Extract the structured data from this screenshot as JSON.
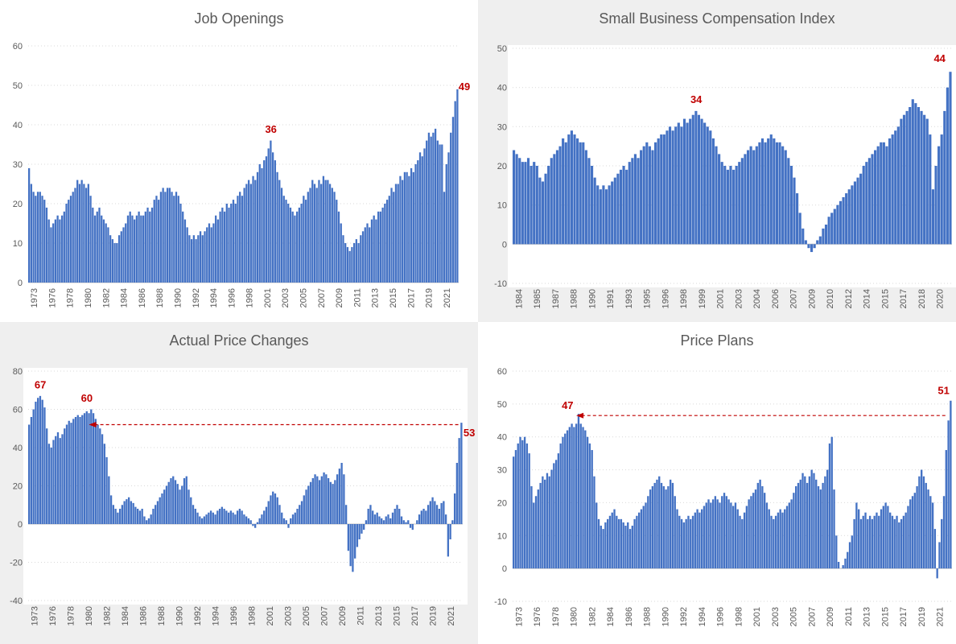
{
  "colors": {
    "bar": "#4472C4",
    "annotation": "#C00000",
    "grid": "#D9D9D9",
    "axis": "#C0C0C0",
    "text": "#595959",
    "panel_gray": "#EFEFEF",
    "plot_white": "#FFFFFF"
  },
  "chart_data": [
    {
      "id": "job-openings",
      "type": "bar",
      "title": "Job Openings",
      "panel_background": "white",
      "ylim": [
        0,
        60
      ],
      "yticks": [
        0,
        10,
        20,
        30,
        40,
        50,
        60
      ],
      "grid": true,
      "xlabels": [
        "1973",
        "1976",
        "1978",
        "1980",
        "1982",
        "1984",
        "1986",
        "1988",
        "1990",
        "1992",
        "1994",
        "1996",
        "1998",
        "2001",
        "2003",
        "2005",
        "2007",
        "2009",
        "2011",
        "2013",
        "2015",
        "2017",
        "2019",
        "2021"
      ],
      "values": [
        29,
        25,
        23,
        22,
        23,
        23,
        22,
        21,
        19,
        16,
        14,
        15,
        16,
        17,
        16,
        17,
        18,
        20,
        21,
        22,
        23,
        24,
        26,
        25,
        26,
        25,
        24,
        25,
        22,
        19,
        17,
        18,
        19,
        17,
        16,
        15,
        14,
        12,
        11,
        10,
        10,
        12,
        13,
        14,
        15,
        17,
        18,
        17,
        16,
        17,
        18,
        17,
        17,
        18,
        19,
        18,
        19,
        21,
        22,
        21,
        23,
        24,
        23,
        24,
        24,
        23,
        22,
        23,
        22,
        20,
        18,
        16,
        14,
        12,
        11,
        12,
        11,
        12,
        13,
        12,
        13,
        14,
        15,
        14,
        15,
        17,
        16,
        18,
        19,
        18,
        20,
        19,
        20,
        21,
        20,
        22,
        23,
        22,
        24,
        25,
        26,
        25,
        27,
        26,
        28,
        30,
        29,
        31,
        32,
        34,
        36,
        33,
        31,
        28,
        26,
        24,
        22,
        21,
        20,
        19,
        18,
        17,
        18,
        19,
        20,
        22,
        21,
        23,
        24,
        26,
        25,
        24,
        26,
        25,
        27,
        26,
        26,
        25,
        24,
        23,
        21,
        18,
        15,
        12,
        10,
        9,
        8,
        9,
        10,
        11,
        10,
        12,
        13,
        14,
        15,
        14,
        16,
        17,
        16,
        18,
        18,
        19,
        20,
        21,
        22,
        24,
        23,
        25,
        25,
        27,
        26,
        28,
        28,
        27,
        29,
        28,
        30,
        31,
        33,
        32,
        34,
        36,
        38,
        37,
        38,
        39,
        36,
        35,
        35,
        23,
        30,
        33,
        38,
        42,
        46,
        49
      ],
      "annotations": [
        {
          "text": "36",
          "xf": 0.564,
          "v": 38
        },
        {
          "text": "49",
          "xf": 1.013,
          "v": 48.8
        }
      ],
      "arrow": null
    },
    {
      "id": "small-business-compensation-index",
      "type": "bar",
      "title": "Small Business Compensation Index",
      "panel_background": "gray",
      "ylim": [
        -10,
        50
      ],
      "yticks": [
        -10,
        0,
        10,
        20,
        30,
        40,
        50
      ],
      "grid": true,
      "xlabels": [
        "1984",
        "1985",
        "1987",
        "1988",
        "1990",
        "1991",
        "1993",
        "1995",
        "1996",
        "1998",
        "1999",
        "2001",
        "2003",
        "2004",
        "2006",
        "2007",
        "2009",
        "2010",
        "2012",
        "2014",
        "2015",
        "2017",
        "2018",
        "2020"
      ],
      "values": [
        24,
        23,
        22,
        21,
        21,
        22,
        20,
        21,
        20,
        17,
        16,
        18,
        20,
        22,
        23,
        24,
        25,
        27,
        26,
        28,
        29,
        28,
        27,
        26,
        26,
        24,
        22,
        20,
        17,
        15,
        14,
        15,
        14,
        15,
        16,
        17,
        18,
        19,
        20,
        19,
        21,
        22,
        23,
        22,
        24,
        25,
        26,
        25,
        24,
        26,
        27,
        28,
        28,
        29,
        30,
        29,
        30,
        31,
        30,
        32,
        31,
        32,
        33,
        34,
        33,
        32,
        31,
        30,
        29,
        27,
        25,
        23,
        21,
        20,
        19,
        20,
        19,
        20,
        21,
        22,
        23,
        24,
        25,
        24,
        25,
        26,
        27,
        26,
        27,
        28,
        27,
        26,
        26,
        25,
        24,
        22,
        20,
        17,
        13,
        8,
        4,
        1,
        -1,
        -2,
        -1,
        1,
        2,
        4,
        5,
        7,
        8,
        9,
        10,
        11,
        12,
        13,
        14,
        15,
        16,
        17,
        18,
        20,
        21,
        22,
        23,
        24,
        25,
        26,
        26,
        25,
        27,
        28,
        29,
        30,
        32,
        33,
        34,
        35,
        37,
        36,
        35,
        34,
        33,
        32,
        28,
        14,
        20,
        25,
        28,
        34,
        40,
        44
      ],
      "annotations": [
        {
          "text": "34",
          "xf": 0.418,
          "v": 36
        },
        {
          "text": "44",
          "xf": 0.972,
          "v": 46.5
        }
      ],
      "arrow": null
    },
    {
      "id": "actual-price-changes",
      "type": "bar",
      "title": "Actual Price Changes",
      "panel_background": "gray",
      "ylim": [
        -40,
        80
      ],
      "yticks": [
        -40,
        -20,
        0,
        20,
        40,
        60,
        80
      ],
      "grid": true,
      "xlabels": [
        "1973",
        "1976",
        "1978",
        "1980",
        "1982",
        "1984",
        "1986",
        "1988",
        "1990",
        "1992",
        "1994",
        "1996",
        "1998",
        "2001",
        "2003",
        "2005",
        "2007",
        "2009",
        "2011",
        "2013",
        "2015",
        "2017",
        "2019",
        "2021"
      ],
      "values": [
        52,
        56,
        60,
        64,
        66,
        67,
        65,
        61,
        50,
        42,
        40,
        44,
        46,
        48,
        45,
        47,
        50,
        52,
        54,
        53,
        55,
        56,
        57,
        56,
        57,
        58,
        59,
        58,
        60,
        58,
        55,
        52,
        50,
        47,
        42,
        35,
        25,
        15,
        10,
        8,
        6,
        8,
        10,
        12,
        13,
        14,
        12,
        11,
        9,
        8,
        7,
        8,
        4,
        2,
        3,
        5,
        8,
        10,
        12,
        14,
        16,
        18,
        20,
        22,
        24,
        25,
        23,
        21,
        18,
        20,
        24,
        25,
        18,
        14,
        10,
        8,
        6,
        4,
        3,
        4,
        5,
        6,
        7,
        6,
        5,
        7,
        8,
        9,
        8,
        7,
        6,
        7,
        6,
        5,
        7,
        8,
        7,
        5,
        4,
        3,
        2,
        -1,
        -2,
        1,
        3,
        5,
        7,
        9,
        12,
        15,
        17,
        16,
        14,
        10,
        6,
        3,
        2,
        -2,
        3,
        5,
        6,
        8,
        10,
        12,
        15,
        18,
        20,
        22,
        24,
        26,
        25,
        23,
        25,
        27,
        26,
        24,
        22,
        21,
        23,
        26,
        29,
        32,
        26,
        10,
        -14,
        -22,
        -25,
        -18,
        -12,
        -8,
        -5,
        -3,
        2,
        8,
        10,
        7,
        5,
        6,
        4,
        3,
        2,
        4,
        5,
        3,
        6,
        8,
        10,
        8,
        4,
        2,
        1,
        2,
        -2,
        -3,
        0,
        2,
        5,
        7,
        8,
        7,
        10,
        12,
        14,
        12,
        10,
        8,
        11,
        12,
        5,
        -17,
        -8,
        2,
        16,
        32,
        45,
        53
      ],
      "annotations": [
        {
          "text": "67",
          "xf": 0.028,
          "v": 71
        },
        {
          "text": "60",
          "xf": 0.135,
          "v": 64
        },
        {
          "text": "53",
          "xf": 1.015,
          "v": 46
        }
      ],
      "arrow": {
        "v": 52,
        "x1f": 0.99,
        "x2f": 0.149
      }
    },
    {
      "id": "price-plans",
      "type": "bar",
      "title": "Price Plans",
      "panel_background": "white",
      "ylim": [
        -10,
        60
      ],
      "yticks": [
        -10,
        0,
        10,
        20,
        30,
        40,
        50,
        60
      ],
      "grid": true,
      "xlabels": [
        "1973",
        "1976",
        "1978",
        "1980",
        "1982",
        "1984",
        "1986",
        "1988",
        "1990",
        "1992",
        "1994",
        "1996",
        "1998",
        "2001",
        "2003",
        "2005",
        "2007",
        "2009",
        "2011",
        "2013",
        "2015",
        "2017",
        "2019",
        "2021"
      ],
      "values": [
        34,
        36,
        38,
        40,
        39,
        40,
        38,
        35,
        25,
        20,
        22,
        24,
        26,
        28,
        27,
        29,
        28,
        30,
        32,
        33,
        35,
        38,
        40,
        41,
        42,
        43,
        44,
        43,
        44,
        47,
        44,
        43,
        42,
        40,
        38,
        36,
        28,
        20,
        15,
        13,
        12,
        14,
        15,
        16,
        17,
        18,
        16,
        15,
        15,
        14,
        13,
        14,
        12,
        13,
        15,
        16,
        17,
        18,
        19,
        20,
        22,
        24,
        25,
        26,
        27,
        28,
        26,
        25,
        24,
        25,
        27,
        26,
        22,
        18,
        16,
        15,
        14,
        15,
        16,
        15,
        16,
        17,
        18,
        17,
        18,
        19,
        20,
        21,
        20,
        21,
        22,
        21,
        20,
        22,
        23,
        22,
        21,
        20,
        19,
        20,
        18,
        16,
        15,
        17,
        19,
        21,
        22,
        23,
        24,
        26,
        27,
        25,
        23,
        20,
        18,
        16,
        15,
        16,
        17,
        18,
        17,
        18,
        19,
        20,
        21,
        23,
        25,
        26,
        27,
        29,
        28,
        26,
        28,
        30,
        29,
        27,
        25,
        24,
        26,
        28,
        30,
        38,
        40,
        24,
        10,
        2,
        0,
        1,
        3,
        5,
        8,
        10,
        15,
        20,
        18,
        15,
        16,
        17,
        15,
        16,
        15,
        16,
        17,
        16,
        18,
        19,
        20,
        19,
        17,
        16,
        15,
        16,
        14,
        15,
        16,
        17,
        19,
        21,
        22,
        23,
        25,
        28,
        30,
        28,
        26,
        24,
        22,
        20,
        12,
        -3,
        8,
        15,
        22,
        36,
        45,
        51
      ],
      "annotations": [
        {
          "text": "47",
          "xf": 0.125,
          "v": 48.5
        },
        {
          "text": "51",
          "xf": 0.981,
          "v": 53
        }
      ],
      "arrow": {
        "v": 46.5,
        "x1f": 0.985,
        "x2f": 0.154
      }
    }
  ]
}
